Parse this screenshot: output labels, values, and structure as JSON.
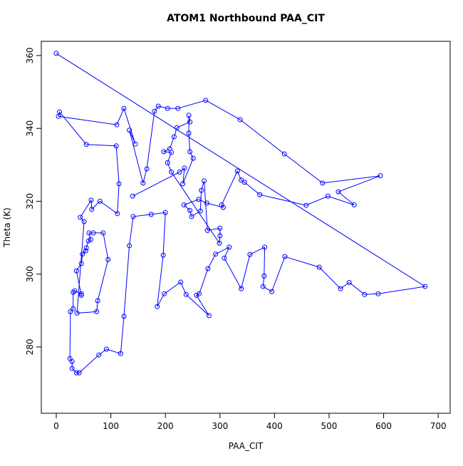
{
  "chart_data": {
    "type": "line",
    "title": "ATOM1 Northbound PAA_CIT",
    "x_label": "PAA_CIT",
    "y_label": "Theta (K)",
    "color": "#0000ff",
    "markers": true,
    "grid": false,
    "xlim": [
      -27.4,
      722
    ],
    "ylim": [
      261.8,
      363.9
    ],
    "xticks": [
      0,
      100,
      200,
      300,
      400,
      500,
      600,
      700
    ],
    "yticks": [
      280,
      300,
      320,
      340,
      360
    ],
    "x": [
      0,
      676,
      590,
      565,
      537,
      521,
      482,
      419,
      395,
      379,
      381,
      382,
      355,
      339,
      308,
      317,
      292,
      278,
      262,
      257,
      280,
      238,
      228,
      198,
      185,
      196,
      200,
      174,
      141,
      134,
      124,
      118,
      92,
      78,
      42,
      37,
      29,
      29,
      25,
      26,
      31,
      31,
      34,
      46,
      46,
      37,
      46,
      48,
      54,
      55,
      59,
      63,
      60,
      68,
      86,
      95,
      76,
      74,
      38,
      51,
      44,
      64,
      65,
      80,
      112,
      115,
      110,
      55,
      6,
      4,
      111,
      124,
      145,
      134,
      159,
      166,
      180,
      187,
      204,
      223,
      274,
      337,
      418,
      488,
      594,
      517,
      546,
      498,
      458,
      373,
      345,
      339,
      332,
      303,
      306,
      276,
      261,
      234,
      245,
      248,
      264,
      266,
      271,
      277,
      300,
      300,
      299,
      211,
      204,
      211,
      197,
      208,
      216,
      221,
      245,
      243,
      243,
      245,
      251,
      232,
      235,
      226,
      140
    ],
    "y": [
      360.6,
      296.6,
      294.6,
      294.4,
      297.7,
      296,
      301.9,
      304.8,
      295.2,
      296.6,
      299.5,
      307.4,
      305.4,
      296,
      304.4,
      307.4,
      305.5,
      301.5,
      294.6,
      294.2,
      288.6,
      294.4,
      297.8,
      294.6,
      291.1,
      305.2,
      316.9,
      316.4,
      315.8,
      307.8,
      288.4,
      278.2,
      279.4,
      277.8,
      272.9,
      272.9,
      274.1,
      276,
      276.8,
      289.7,
      290.5,
      295,
      295.4,
      294.6,
      294.2,
      300.9,
      302.9,
      305.5,
      306.4,
      307.2,
      309.1,
      309.5,
      311.3,
      311.3,
      311.3,
      304,
      292.7,
      289.7,
      289.3,
      314.4,
      315.6,
      320.3,
      317.8,
      320,
      316.6,
      324.8,
      335.2,
      335.6,
      344.5,
      343.3,
      341,
      345.5,
      335.7,
      339.5,
      325,
      328.9,
      344.7,
      346.1,
      345.5,
      345.5,
      347.7,
      342.4,
      333,
      325,
      327,
      322.6,
      319,
      321.4,
      318.9,
      321.8,
      325.2,
      325.8,
      328.3,
      319,
      318.3,
      319.5,
      320.5,
      319,
      317.5,
      315.8,
      317.3,
      323,
      325.6,
      312,
      312.6,
      310.5,
      308.5,
      328,
      330.6,
      333.4,
      333.6,
      334.4,
      337.7,
      340.2,
      341.8,
      343.6,
      338.7,
      333.6,
      331.8,
      324.8,
      329.1,
      328,
      321.4
    ]
  }
}
